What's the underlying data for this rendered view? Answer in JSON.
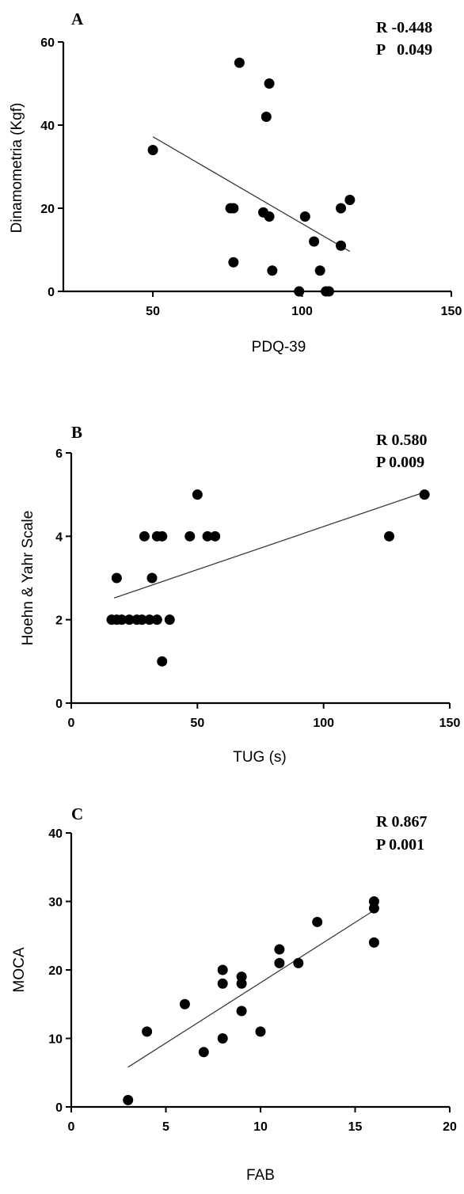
{
  "chart_data": [
    {
      "type": "scatter",
      "panel_label": "A",
      "stats": {
        "r": "R -0.448",
        "p": "P   0.049"
      },
      "xlabel": "PDQ-39",
      "ylabel": "Dinamometria (Kgf)",
      "xlim": [
        20,
        150
      ],
      "ylim": [
        0,
        60
      ],
      "xticks": [
        "50",
        "100",
        "150"
      ],
      "yticks": [
        "0",
        "20",
        "40",
        "60"
      ],
      "trendline": {
        "x": [
          50,
          116
        ],
        "y": [
          37.2,
          9.6
        ]
      },
      "points": [
        [
          50,
          34
        ],
        [
          76,
          20
        ],
        [
          77,
          20
        ],
        [
          77,
          7
        ],
        [
          79,
          55
        ],
        [
          87,
          19
        ],
        [
          88,
          42
        ],
        [
          89,
          50
        ],
        [
          89,
          18
        ],
        [
          90,
          5
        ],
        [
          99,
          0
        ],
        [
          101,
          18
        ],
        [
          104,
          12
        ],
        [
          106,
          5
        ],
        [
          108,
          0
        ],
        [
          109,
          0
        ],
        [
          113,
          20
        ],
        [
          113,
          11
        ],
        [
          116,
          22
        ]
      ]
    },
    {
      "type": "scatter",
      "panel_label": "B",
      "stats": {
        "r": "R 0.580",
        "p": "P 0.009"
      },
      "xlabel": "TUG (s)",
      "ylabel": "Hoehn & Yahr Scale",
      "xlim": [
        0,
        150
      ],
      "ylim": [
        0,
        6
      ],
      "xticks": [
        "0",
        "50",
        "100",
        "150"
      ],
      "yticks": [
        "0",
        "2",
        "4",
        "6"
      ],
      "trendline": {
        "x": [
          17,
          141
        ],
        "y": [
          2.52,
          5.08
        ]
      },
      "points": [
        [
          16,
          2
        ],
        [
          18,
          2
        ],
        [
          18,
          3
        ],
        [
          20,
          2
        ],
        [
          23,
          2
        ],
        [
          26,
          2
        ],
        [
          28,
          2
        ],
        [
          29,
          4
        ],
        [
          31,
          2
        ],
        [
          32,
          3
        ],
        [
          34,
          4
        ],
        [
          34,
          2
        ],
        [
          36,
          4
        ],
        [
          36,
          1
        ],
        [
          39,
          2
        ],
        [
          47,
          4
        ],
        [
          50,
          5
        ],
        [
          54,
          4
        ],
        [
          57,
          4
        ],
        [
          126,
          4
        ],
        [
          140,
          5
        ]
      ]
    },
    {
      "type": "scatter",
      "panel_label": "C",
      "stats": {
        "r": "R 0.867",
        "p": "P 0.001"
      },
      "xlabel": "FAB",
      "ylabel": "MOCA",
      "xlim": [
        0,
        20
      ],
      "ylim": [
        0,
        40
      ],
      "xticks": [
        "0",
        "5",
        "10",
        "15",
        "20"
      ],
      "yticks": [
        "0",
        "10",
        "20",
        "30",
        "40"
      ],
      "trendline": {
        "x": [
          3,
          16
        ],
        "y": [
          5.8,
          28.7
        ]
      },
      "points": [
        [
          3,
          1
        ],
        [
          4,
          11
        ],
        [
          6,
          15
        ],
        [
          7,
          8
        ],
        [
          8,
          20
        ],
        [
          8,
          18
        ],
        [
          8,
          10
        ],
        [
          9,
          19
        ],
        [
          9,
          18
        ],
        [
          9,
          14
        ],
        [
          10,
          11
        ],
        [
          11,
          23
        ],
        [
          11,
          21
        ],
        [
          12,
          21
        ],
        [
          13,
          27
        ],
        [
          16,
          30
        ],
        [
          16,
          29
        ],
        [
          16,
          24
        ]
      ]
    }
  ]
}
